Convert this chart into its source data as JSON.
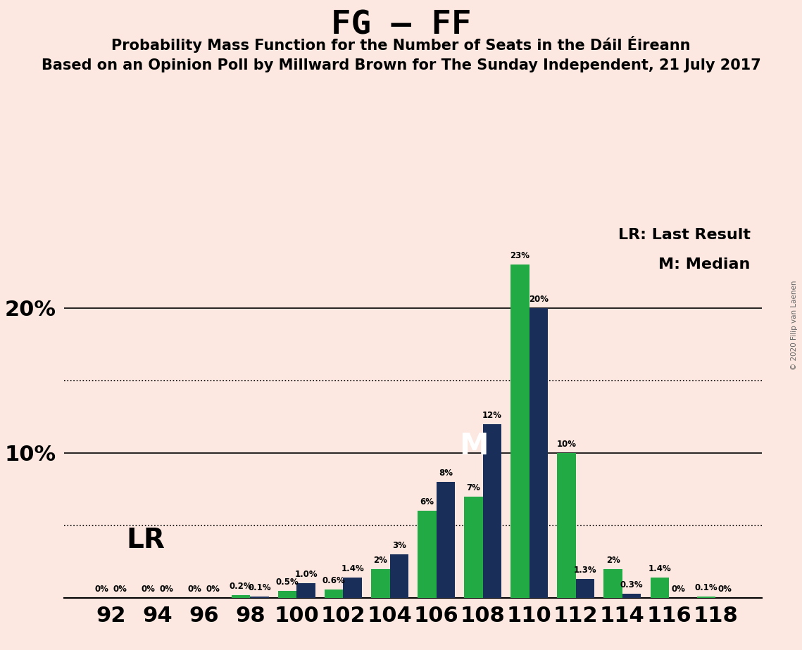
{
  "title": "FG – FF",
  "subtitle1": "Probability Mass Function for the Number of Seats in the Dáil Éireann",
  "subtitle2": "Based on an Opinion Poll by Millward Brown for The Sunday Independent, 21 July 2017",
  "copyright": "© 2020 Filip van Laenen",
  "legend_lr": "LR: Last Result",
  "legend_m": "M: Median",
  "lr_label": "LR",
  "median_label": "M",
  "seats": [
    92,
    94,
    96,
    98,
    100,
    102,
    104,
    106,
    108,
    110,
    112,
    114,
    116,
    118
  ],
  "fg_values": [
    0.0,
    0.0,
    0.0,
    0.1,
    1.0,
    1.4,
    3.0,
    8.0,
    12.0,
    20.0,
    1.3,
    0.3,
    0.0,
    0.0
  ],
  "ff_values": [
    0.0,
    0.0,
    0.0,
    0.2,
    0.5,
    0.6,
    2.0,
    6.0,
    7.0,
    23.0,
    10.0,
    2.0,
    1.4,
    0.1
  ],
  "fg_labels": [
    "0%",
    "0%",
    "0%",
    "0.1%",
    "1.0%",
    "1.4%",
    "3%",
    "8%",
    "12%",
    "20%",
    "1.3%",
    "0.3%",
    "0%",
    "0%"
  ],
  "ff_labels": [
    "0%",
    "0%",
    "0%",
    "0.2%",
    "0.5%",
    "0.6%",
    "2%",
    "6%",
    "7%",
    "23%",
    "10%",
    "2%",
    "1.4%",
    "0.1%"
  ],
  "fg_color": "#1a2e5a",
  "ff_color": "#22aa44",
  "background_color": "#fce8e0",
  "median_seat": 108,
  "ylim": [
    0,
    26
  ],
  "yticks": [
    10,
    20
  ],
  "ytick_labels": [
    "10%",
    "20%"
  ],
  "dotted_lines": [
    5.0,
    15.0
  ],
  "bar_width": 0.8,
  "group_width": 2.0
}
